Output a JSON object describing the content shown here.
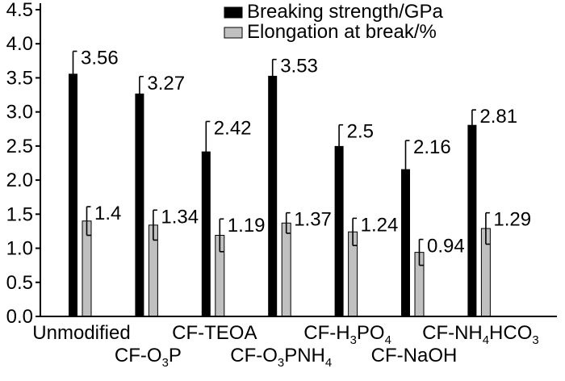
{
  "chart_data": {
    "type": "bar",
    "categories": [
      {
        "base": "Unmodified",
        "parts": [
          {
            "t": "Unmodified"
          }
        ]
      },
      {
        "base": "CF-O3P",
        "parts": [
          {
            "t": "CF-O"
          },
          {
            "t": "3",
            "sub": true
          },
          {
            "t": "P"
          }
        ]
      },
      {
        "base": "CF-TEOA",
        "parts": [
          {
            "t": "CF-TEOA"
          }
        ]
      },
      {
        "base": "CF-O3PNH4",
        "parts": [
          {
            "t": "CF-O"
          },
          {
            "t": "3",
            "sub": true
          },
          {
            "t": "PNH"
          },
          {
            "t": "4",
            "sub": true
          }
        ]
      },
      {
        "base": "CF-H3PO4",
        "parts": [
          {
            "t": "CF-H"
          },
          {
            "t": "3",
            "sub": true
          },
          {
            "t": "PO"
          },
          {
            "t": "4",
            "sub": true
          }
        ]
      },
      {
        "base": "CF-NaOH",
        "parts": [
          {
            "t": "CF-NaOH"
          }
        ]
      },
      {
        "base": "CF-NH4HCO3",
        "parts": [
          {
            "t": "CF-NH"
          },
          {
            "t": "4",
            "sub": true
          },
          {
            "t": "HCO"
          },
          {
            "t": "3",
            "sub": true
          }
        ]
      }
    ],
    "series": [
      {
        "name": "Breaking strength/GPa",
        "color": "#000000",
        "values": [
          3.56,
          3.27,
          2.42,
          3.53,
          2.5,
          2.16,
          2.81
        ],
        "labels": [
          "3.56",
          "3.27",
          "2.42",
          "3.53",
          "2.5",
          "2.16",
          "2.81"
        ],
        "error": [
          0.33,
          0.25,
          0.44,
          0.24,
          0.31,
          0.42,
          0.22
        ]
      },
      {
        "name": "Elongation at break/%",
        "color": "#c0c0c0",
        "values": [
          1.4,
          1.34,
          1.19,
          1.37,
          1.24,
          0.94,
          1.29
        ],
        "labels": [
          "1.4",
          "1.34",
          "1.19",
          "1.37",
          "1.24",
          "0.94",
          "1.29"
        ],
        "error": [
          0.21,
          0.22,
          0.24,
          0.15,
          0.2,
          0.19,
          0.23
        ]
      }
    ],
    "ylim": [
      0,
      4.5
    ],
    "yticks": [
      "0.0",
      "0.5",
      "1.0",
      "1.5",
      "2.0",
      "2.5",
      "3.0",
      "3.5",
      "4.0",
      "4.5"
    ],
    "grid": false,
    "legend_position": "top-right"
  }
}
